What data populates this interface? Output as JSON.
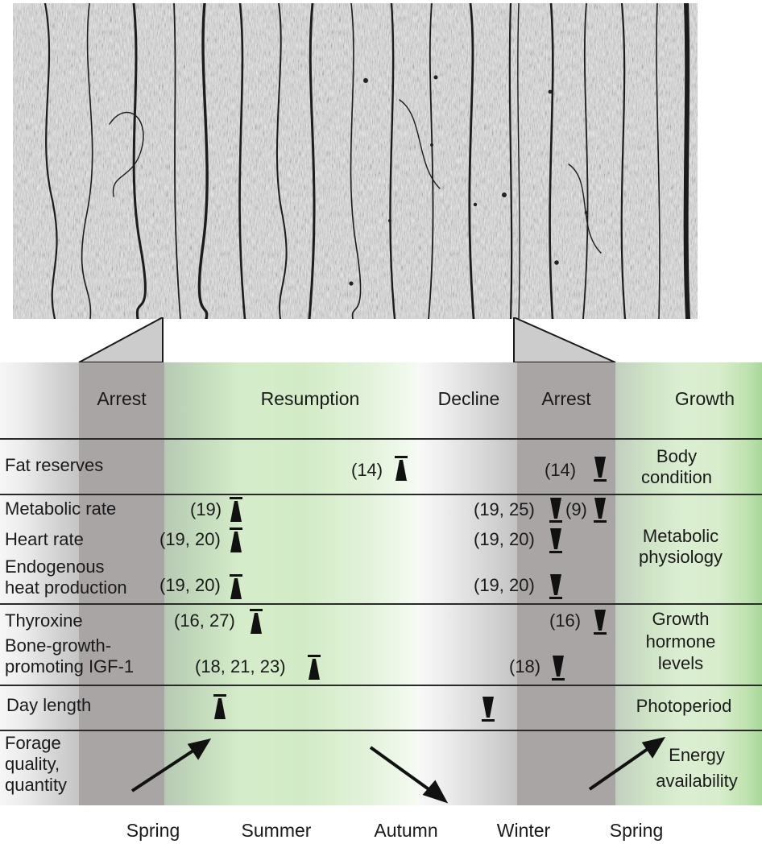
{
  "phases": {
    "arrest_1": "Arrest",
    "resumption": "Resumption",
    "decline": "Decline",
    "arrest_2": "Arrest",
    "growth": "Growth"
  },
  "rows": {
    "fat_reserves": "Fat reserves",
    "metabolic_rate": "Metabolic rate",
    "heart_rate": "Heart rate",
    "endogenous_1": "Endogenous",
    "endogenous_2": "heat production",
    "thyroxine": "Thyroxine",
    "bone_1": "Bone-growth-",
    "bone_2": "promoting IGF-1",
    "day_length": "Day length",
    "forage_1": "Forage",
    "forage_2": "quality,",
    "forage_3": "quantity"
  },
  "categories": {
    "body_1": "Body",
    "body_2": "condition",
    "metabolic_1": "Metabolic",
    "metabolic_2": "physiology",
    "growth_1": "Growth",
    "growth_2": "hormone",
    "growth_3": "levels",
    "photoperiod": "Photoperiod",
    "energy_1": "Energy",
    "energy_2": "availability"
  },
  "refs": {
    "fat_up": "(14)",
    "fat_down": "(14)",
    "metab_up": "(19)",
    "metab_down_a": "(19, 25)",
    "metab_down_b": "(9)",
    "heart_up": "(19, 20)",
    "heart_down": "(19, 20)",
    "heat_up": "(19, 20)",
    "heat_down": "(19, 20)",
    "thyrox_up": "(16, 27)",
    "thyrox_down": "(16)",
    "igf_up": "(18, 21, 23)",
    "igf_down": "(18)"
  },
  "seasons": {
    "spring_1": "Spring",
    "summer": "Summer",
    "autumn": "Autumn",
    "winter": "Winter",
    "spring_2": "Spring"
  },
  "colors": {
    "arrest": "#a8a3a3",
    "green_light": "#e6f3df",
    "green_mid": "#c9e8bd",
    "green_strong": "#a8d79a",
    "rule": "#2a2a2a"
  }
}
